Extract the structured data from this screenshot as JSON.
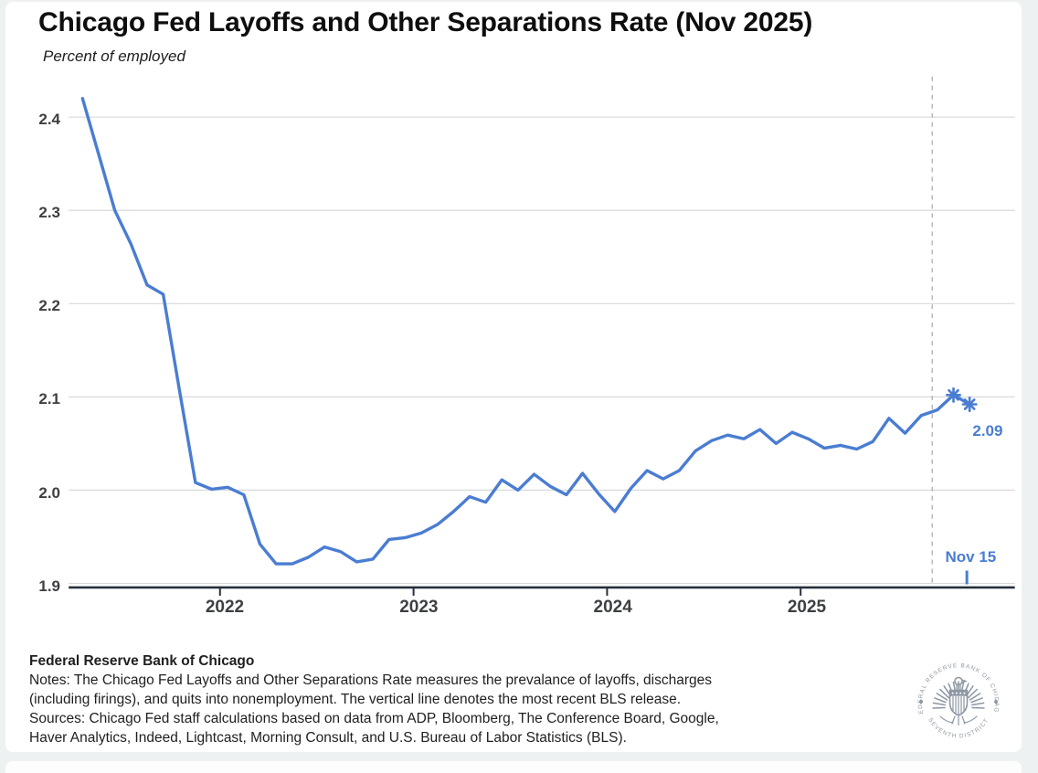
{
  "title": "Chicago Fed Layoffs and Other Separations Rate (Nov 2025)",
  "subtitle": "Percent of employed",
  "chart_data": {
    "type": "line",
    "title": "Chicago Fed Layoffs and Other Separations Rate (Nov 2025)",
    "subtitle": "Percent of employed",
    "ylabel": "Percent of employed",
    "xlabel": "",
    "ylim": [
      1.9,
      2.45
    ],
    "y_ticks": [
      "1.9",
      "2.0",
      "2.1",
      "2.2",
      "2.3",
      "2.4"
    ],
    "x_ticks": [
      "2022",
      "2023",
      "2024",
      "2025"
    ],
    "grid": "horizontal",
    "legend_position": "none",
    "series": [
      {
        "name": "Layoffs and other separations rate (percent of employed)",
        "points": [
          [
            "2021-04",
            2.42
          ],
          [
            "2021-05",
            2.36
          ],
          [
            "2021-06",
            2.3
          ],
          [
            "2021-07",
            2.264
          ],
          [
            "2021-08",
            2.22
          ],
          [
            "2021-09",
            2.21
          ],
          [
            "2021-10",
            2.108
          ],
          [
            "2021-11",
            2.008
          ],
          [
            "2021-12",
            2.001
          ],
          [
            "2022-01",
            2.003
          ],
          [
            "2022-02",
            1.995
          ],
          [
            "2022-03",
            1.942
          ],
          [
            "2022-04",
            1.921
          ],
          [
            "2022-05",
            1.921
          ],
          [
            "2022-06",
            1.928
          ],
          [
            "2022-07",
            1.939
          ],
          [
            "2022-08",
            1.934
          ],
          [
            "2022-09",
            1.923
          ],
          [
            "2022-10",
            1.926
          ],
          [
            "2022-11",
            1.947
          ],
          [
            "2022-12",
            1.949
          ],
          [
            "2023-01",
            1.954
          ],
          [
            "2023-02",
            1.963
          ],
          [
            "2023-03",
            1.977
          ],
          [
            "2023-04",
            1.993
          ],
          [
            "2023-05",
            1.987
          ],
          [
            "2023-06",
            2.011
          ],
          [
            "2023-07",
            2.0
          ],
          [
            "2023-08",
            2.017
          ],
          [
            "2023-09",
            2.004
          ],
          [
            "2023-10",
            1.995
          ],
          [
            "2023-11",
            2.018
          ],
          [
            "2023-12",
            1.996
          ],
          [
            "2024-01",
            1.977
          ],
          [
            "2024-02",
            2.002
          ],
          [
            "2024-03",
            2.021
          ],
          [
            "2024-04",
            2.012
          ],
          [
            "2024-05",
            2.021
          ],
          [
            "2024-06",
            2.042
          ],
          [
            "2024-07",
            2.053
          ],
          [
            "2024-08",
            2.059
          ],
          [
            "2024-09",
            2.055
          ],
          [
            "2024-10",
            2.065
          ],
          [
            "2024-11",
            2.05
          ],
          [
            "2024-12",
            2.062
          ],
          [
            "2025-01",
            2.055
          ],
          [
            "2025-02",
            2.045
          ],
          [
            "2025-03",
            2.048
          ],
          [
            "2025-04",
            2.044
          ],
          [
            "2025-05",
            2.052
          ],
          [
            "2025-06",
            2.077
          ],
          [
            "2025-07",
            2.061
          ],
          [
            "2025-08",
            2.08
          ],
          [
            "2025-09",
            2.086
          ]
        ],
        "starred_points": [
          [
            "2025-10",
            2.102
          ],
          [
            "2025-11-15",
            2.092
          ]
        ]
      }
    ],
    "release_line_year_fraction": 2025.68,
    "annotations": {
      "last_value_label": "2.09",
      "release_date_label": "Nov 15"
    }
  },
  "colors": {
    "line": "#4a7dd2",
    "annotation": "#4a7dd2",
    "grid": "#d8d9da",
    "dashed_line": "#b9bcbe",
    "axis": "#26303c",
    "tick_label": "#3d4043"
  },
  "footer": {
    "org": "Federal Reserve Bank of Chicago",
    "notes_lines": [
      "Notes: The Chicago Fed Layoffs and Other Separations Rate measures the prevalance of layoffs, discharges",
      "(including firings), and quits into nonemployment. The vertical line denotes the most recent BLS release."
    ],
    "sources_lines": [
      "Sources: Chicago Fed staff calculations based on data from ADP, Bloomberg, The Conference Board, Google,",
      "Haver Analytics, Indeed, Lightcast, Morning Consult, and U.S. Bureau of Labor Statistics (BLS)."
    ]
  },
  "seal": {
    "top_text": "FEDERAL RESERVE BANK OF CHICAGO",
    "bottom_text": "SEVENTH DISTRICT"
  }
}
